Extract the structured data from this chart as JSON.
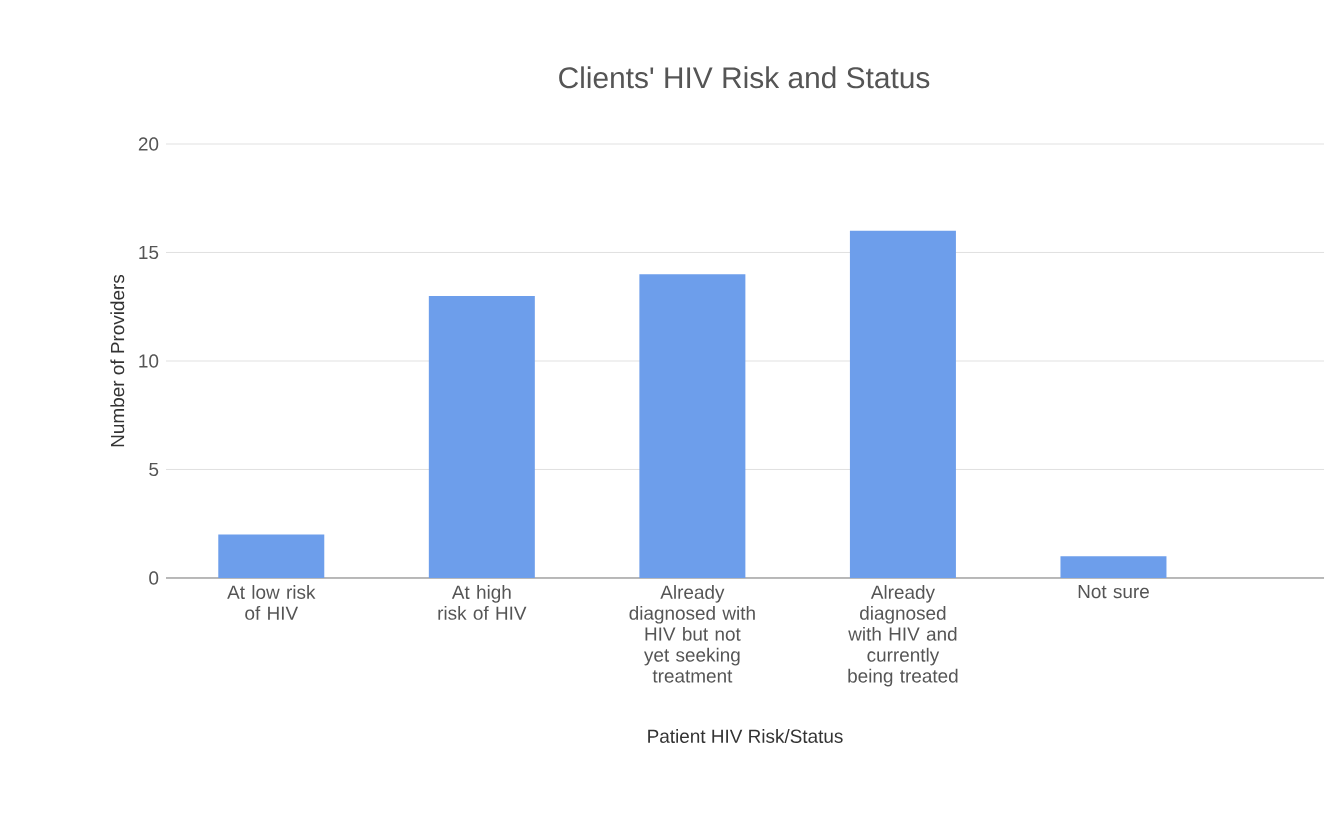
{
  "chart_data": {
    "type": "bar",
    "title": "Clients' HIV Risk and Status",
    "xlabel": "Patient HIV Risk/Status",
    "ylabel": "Number of Providers",
    "categories": [
      "At low risk of HIV",
      "At high risk of HIV",
      "Already diagnosed with HIV but not yet seeking treatment",
      "Already diagnosed with HIV and currently being treated",
      "Not sure"
    ],
    "values": [
      2,
      13,
      14,
      16,
      1
    ],
    "color": "#6d9eeb",
    "ylim": [
      0,
      20
    ],
    "yticks": [
      0,
      5,
      10,
      15,
      20
    ],
    "grid": "y"
  }
}
